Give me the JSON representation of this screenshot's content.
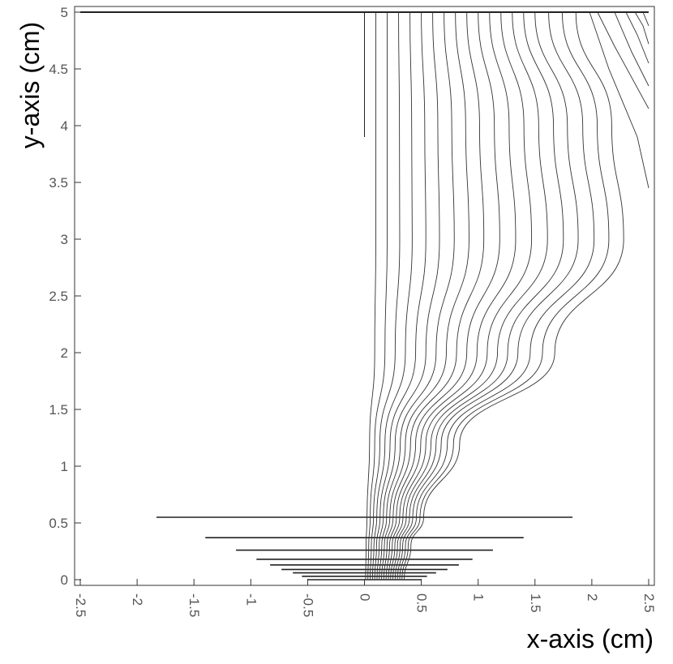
{
  "chart_data": {
    "type": "line",
    "title": "",
    "xlabel": "x-axis (cm)",
    "ylabel": "y-axis (cm)",
    "xlim": [
      -2.55,
      2.55
    ],
    "ylim": [
      -0.05,
      5.05
    ],
    "grid": false,
    "legend": "none",
    "x_ticks": [
      -2.5,
      -2,
      -1.5,
      -1,
      -0.5,
      0,
      0.5,
      1,
      1.5,
      2,
      2.5
    ],
    "x_tick_labels": [
      "-2.5",
      "-2",
      "-1.5",
      "-1",
      "-0.5",
      "0",
      "0.5",
      "1",
      "1.5",
      "2",
      "2.5"
    ],
    "y_ticks": [
      0,
      0.5,
      1,
      1.5,
      2,
      2.5,
      3,
      3.5,
      4,
      4.5,
      5
    ],
    "y_tick_labels": [
      "0",
      "0.5",
      "1",
      "1.5",
      "2",
      "2.5",
      "3",
      "3.5",
      "4",
      "4.5",
      "5"
    ],
    "segments": [
      {
        "name": "top-electrode",
        "x": [
          -2.5,
          2.5
        ],
        "y": [
          5.0,
          5.0
        ]
      },
      {
        "name": "center-wire",
        "x": [
          0.0,
          0.0
        ],
        "y": [
          5.0,
          3.9
        ]
      },
      {
        "name": "strip-1",
        "x": [
          -1.83,
          1.83
        ],
        "y": [
          0.55,
          0.55
        ]
      },
      {
        "name": "strip-2",
        "x": [
          -1.4,
          1.4
        ],
        "y": [
          0.37,
          0.37
        ]
      },
      {
        "name": "strip-3",
        "x": [
          -1.13,
          1.13
        ],
        "y": [
          0.26,
          0.26
        ]
      },
      {
        "name": "strip-4",
        "x": [
          -0.95,
          0.95
        ],
        "y": [
          0.18,
          0.18
        ]
      },
      {
        "name": "strip-5",
        "x": [
          -0.83,
          0.83
        ],
        "y": [
          0.13,
          0.13
        ]
      },
      {
        "name": "strip-6",
        "x": [
          -0.73,
          0.73
        ],
        "y": [
          0.09,
          0.09
        ]
      },
      {
        "name": "strip-7",
        "x": [
          -0.63,
          0.63
        ],
        "y": [
          0.06,
          0.06
        ]
      },
      {
        "name": "strip-8",
        "x": [
          -0.55,
          0.55
        ],
        "y": [
          0.03,
          0.03
        ]
      },
      {
        "name": "strip-9",
        "x": [
          -0.5,
          0.5
        ],
        "y": [
          0.0,
          0.0
        ]
      }
    ],
    "field_lines": [
      {
        "top_x": 0.1,
        "peak_x": 0.1,
        "bottom_x": 0.01
      },
      {
        "top_x": 0.2,
        "peak_x": 0.2,
        "bottom_x": 0.03
      },
      {
        "top_x": 0.3,
        "peak_x": 0.31,
        "bottom_x": 0.05
      },
      {
        "top_x": 0.4,
        "peak_x": 0.42,
        "bottom_x": 0.07
      },
      {
        "top_x": 0.5,
        "peak_x": 0.54,
        "bottom_x": 0.09
      },
      {
        "top_x": 0.6,
        "peak_x": 0.66,
        "bottom_x": 0.11
      },
      {
        "top_x": 0.7,
        "peak_x": 0.79,
        "bottom_x": 0.13
      },
      {
        "top_x": 0.8,
        "peak_x": 0.92,
        "bottom_x": 0.15
      },
      {
        "top_x": 0.9,
        "peak_x": 1.05,
        "bottom_x": 0.17
      },
      {
        "top_x": 1.0,
        "peak_x": 1.19,
        "bottom_x": 0.19
      },
      {
        "top_x": 1.1,
        "peak_x": 1.33,
        "bottom_x": 0.21
      },
      {
        "top_x": 1.2,
        "peak_x": 1.47,
        "bottom_x": 0.23
      },
      {
        "top_x": 1.3,
        "peak_x": 1.61,
        "bottom_x": 0.25
      },
      {
        "top_x": 1.4,
        "peak_x": 1.75,
        "bottom_x": 0.27
      },
      {
        "top_x": 1.5,
        "peak_x": 1.88,
        "bottom_x": 0.29
      },
      {
        "top_x": 1.62,
        "peak_x": 2.02,
        "bottom_x": 0.31
      },
      {
        "top_x": 1.74,
        "peak_x": 2.15,
        "bottom_x": 0.33
      },
      {
        "top_x": 1.86,
        "peak_x": 2.28,
        "bottom_x": 0.35
      }
    ],
    "edge_lines": [
      {
        "x": [
          2.05,
          2.2,
          2.5
        ],
        "y": [
          5.0,
          4.7,
          4.15
        ]
      },
      {
        "x": [
          2.2,
          2.35,
          2.5
        ],
        "y": [
          5.0,
          4.65,
          4.35
        ]
      },
      {
        "x": [
          2.3,
          2.4,
          2.5
        ],
        "y": [
          5.0,
          4.8,
          4.55
        ]
      },
      {
        "x": [
          2.38,
          2.45,
          2.5
        ],
        "y": [
          5.0,
          4.88,
          4.72
        ]
      },
      {
        "x": [
          2.45,
          2.5
        ],
        "y": [
          5.0,
          4.88
        ]
      },
      {
        "x": [
          1.98,
          2.15,
          2.4,
          2.5
        ],
        "y": [
          5.0,
          4.5,
          3.9,
          3.45
        ]
      }
    ]
  }
}
